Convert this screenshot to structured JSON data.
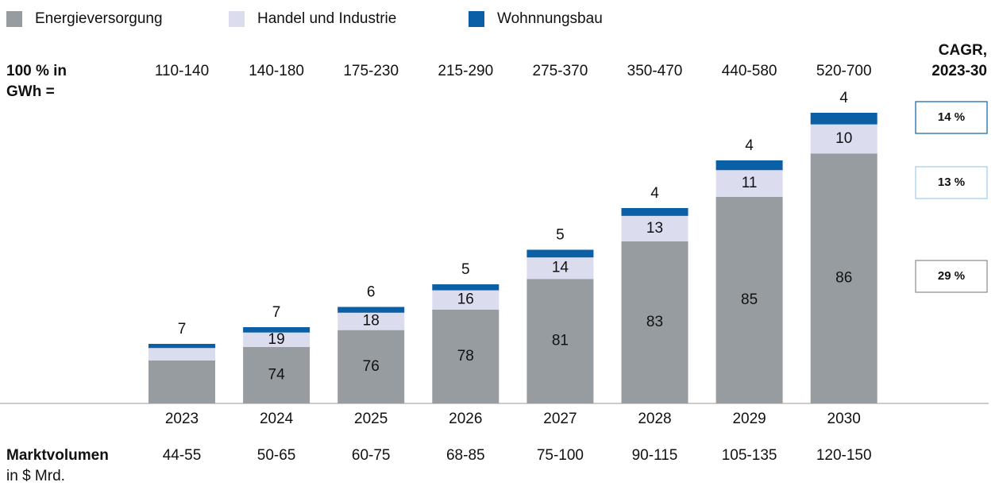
{
  "chart_data": {
    "type": "stacked_bar",
    "categories": [
      "2023",
      "2024",
      "2025",
      "2026",
      "2027",
      "2028",
      "2029",
      "2030"
    ],
    "volume_label": "100 % in GWh =",
    "volume": [
      {
        "value": 125,
        "label": "110-140"
      },
      {
        "value": 160,
        "label": "140-180"
      },
      {
        "value": 202.5,
        "label": "175-230"
      },
      {
        "value": 252.5,
        "label": "215-290"
      },
      {
        "value": 322.5,
        "label": "275-370"
      },
      {
        "value": 410,
        "label": "350-470"
      },
      {
        "value": 510,
        "label": "440-580"
      },
      {
        "value": 610,
        "label": "520-700"
      }
    ],
    "cagr_title": "CAGR, 2023-30",
    "market_title": "Marktvolumen",
    "market_unit": "in $ Mrd.",
    "market": [
      "44-55",
      "50-65",
      "60-75",
      "68-85",
      "75-100",
      "90-115",
      "105-135",
      "120-150"
    ],
    "series": [
      {
        "name": "Energieversorgung",
        "color": "#979ca0",
        "cagr": "29 %",
        "cagr_color": "#8a8a8a",
        "values": [
          72,
          74,
          76,
          78,
          81,
          83,
          85,
          86
        ],
        "value_labels": [
          null,
          "74",
          "76",
          "78",
          "81",
          "83",
          "85",
          "86"
        ]
      },
      {
        "name": "Handel und Industrie",
        "color": "#dcdcef",
        "cagr": "13 %",
        "cagr_color": "#9ccbe8",
        "values": [
          21,
          19,
          18,
          16,
          14,
          13,
          11,
          10
        ],
        "value_labels": [
          null,
          "19",
          "18",
          "16",
          "14",
          "13",
          "11",
          "10"
        ]
      },
      {
        "name": "Wohnnungsbau",
        "color": "#0b5fa5",
        "cagr": "14 %",
        "cagr_color": "#0b5fa5",
        "values": [
          7,
          7,
          6,
          5,
          5,
          4,
          4,
          4
        ],
        "value_labels": [
          "7",
          "7",
          "6",
          "5",
          "5",
          "4",
          "4",
          "4"
        ]
      }
    ]
  }
}
